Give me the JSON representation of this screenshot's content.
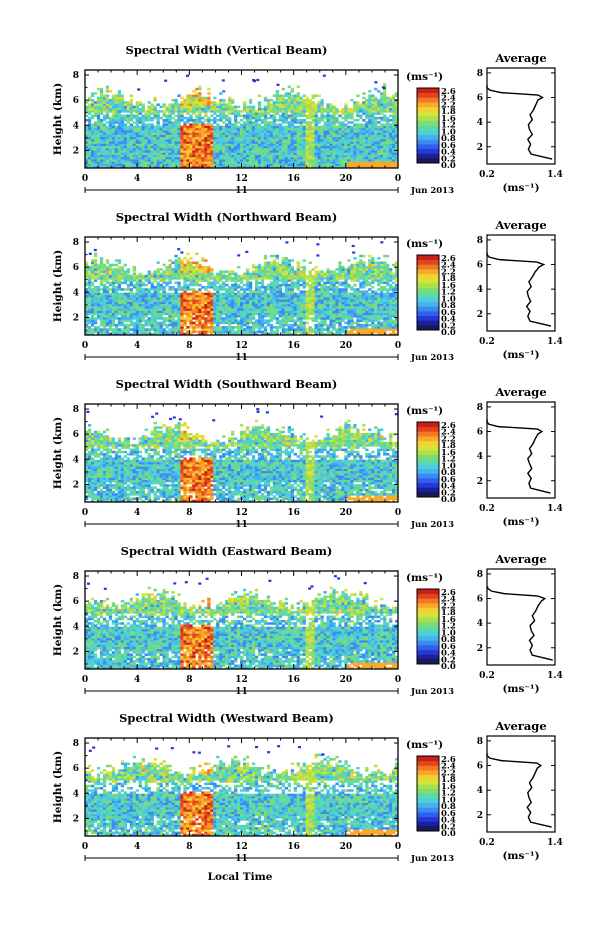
{
  "figure": {
    "xlabel": "Local Time",
    "date_label": "Jun 2013",
    "day_label": "11",
    "unit_label": "(ms⁻¹)",
    "avg_title": "Average",
    "ylabel": "Height (km)"
  },
  "colors": {
    "colormap": [
      "#1c1f9e",
      "#2538d8",
      "#2f5fec",
      "#3b8cf2",
      "#45b2f0",
      "#4ccfd8",
      "#5bd9a8",
      "#7fdc73",
      "#a8e04e",
      "#d6e43a",
      "#f5d032",
      "#f7a92c",
      "#f27825",
      "#e3441d",
      "#c81f16"
    ],
    "lowest_bin": "#1a1a5a"
  },
  "chart_data": [
    {
      "type": "heatmap",
      "title": "Spectral Width (Vertical Beam)",
      "x_ticks": [
        "0",
        "4",
        "8",
        "12",
        "16",
        "20",
        "0"
      ],
      "xlim": [
        0,
        24
      ],
      "y_ticks": [
        "2",
        "4",
        "6",
        "8"
      ],
      "ylim": [
        0.6,
        8.4
      ],
      "colorbar_ticks": [
        "2.6",
        "2.4",
        "2.2",
        "1.8",
        "1.6",
        "1.2",
        "1.0",
        "0.8",
        "0.6",
        "0.4",
        "0.2",
        "0.0"
      ],
      "profile": {
        "xlim": [
          0.2,
          1.4
        ],
        "x_ticks": [
          "0.2",
          "1.4"
        ],
        "ylim": [
          0.6,
          8.4
        ],
        "y_ticks": [
          "2",
          "4",
          "6",
          "8"
        ],
        "height_km": [
          1.0,
          1.4,
          1.8,
          2.2,
          2.6,
          3.0,
          3.4,
          3.8,
          4.2,
          4.6,
          5.0,
          5.4,
          5.8,
          6.0,
          6.2,
          6.4,
          6.6,
          6.8,
          7.0
        ],
        "width_ms": [
          1.35,
          0.98,
          0.93,
          0.97,
          0.92,
          1.0,
          0.95,
          0.93,
          1.0,
          0.96,
          1.02,
          1.06,
          1.1,
          1.18,
          1.1,
          0.45,
          0.25,
          0.2,
          0.2
        ]
      }
    },
    {
      "type": "heatmap",
      "title": "Spectral Width (Northward Beam)",
      "x_ticks": [
        "0",
        "4",
        "8",
        "12",
        "16",
        "20",
        "0"
      ],
      "xlim": [
        0,
        24
      ],
      "y_ticks": [
        "2",
        "4",
        "6",
        "8"
      ],
      "ylim": [
        0.6,
        8.4
      ],
      "colorbar_ticks": [
        "2.6",
        "2.4",
        "2.2",
        "1.8",
        "1.6",
        "1.2",
        "1.0",
        "0.8",
        "0.6",
        "0.4",
        "0.2",
        "0.0"
      ],
      "profile": {
        "xlim": [
          0.2,
          1.4
        ],
        "x_ticks": [
          "0.2",
          "1.4"
        ],
        "ylim": [
          0.6,
          8.4
        ],
        "y_ticks": [
          "2",
          "4",
          "6",
          "8"
        ],
        "height_km": [
          1.0,
          1.4,
          1.8,
          2.2,
          2.6,
          3.0,
          3.4,
          3.8,
          4.2,
          4.6,
          5.0,
          5.4,
          5.8,
          6.0,
          6.2,
          6.4,
          6.6,
          6.8,
          7.0
        ],
        "width_ms": [
          1.33,
          0.96,
          0.92,
          0.96,
          0.9,
          0.97,
          0.93,
          0.91,
          0.98,
          0.94,
          1.0,
          1.05,
          1.12,
          1.2,
          1.08,
          0.42,
          0.24,
          0.2,
          0.2
        ]
      }
    },
    {
      "type": "heatmap",
      "title": "Spectral Width (Southward Beam)",
      "x_ticks": [
        "0",
        "4",
        "8",
        "12",
        "16",
        "20",
        "0"
      ],
      "xlim": [
        0,
        24
      ],
      "y_ticks": [
        "2",
        "4",
        "6",
        "8"
      ],
      "ylim": [
        0.6,
        8.4
      ],
      "colorbar_ticks": [
        "2.6",
        "2.4",
        "2.2",
        "1.8",
        "1.6",
        "1.2",
        "1.0",
        "0.8",
        "0.6",
        "0.4",
        "0.2",
        "0.0"
      ],
      "profile": {
        "xlim": [
          0.2,
          1.4
        ],
        "x_ticks": [
          "0.2",
          "1.4"
        ],
        "ylim": [
          0.6,
          8.4
        ],
        "y_ticks": [
          "2",
          "4",
          "6",
          "8"
        ],
        "height_km": [
          1.0,
          1.4,
          1.8,
          2.2,
          2.6,
          3.0,
          3.4,
          3.8,
          4.2,
          4.6,
          5.0,
          5.4,
          5.8,
          6.0,
          6.2,
          6.4,
          6.6,
          6.8,
          7.0
        ],
        "width_ms": [
          1.32,
          0.97,
          0.94,
          0.98,
          0.92,
          0.99,
          0.95,
          0.92,
          0.99,
          0.95,
          1.01,
          1.05,
          1.1,
          1.17,
          1.09,
          0.4,
          0.23,
          0.2,
          0.2
        ]
      }
    },
    {
      "type": "heatmap",
      "title": "Spectral Width (Eastward Beam)",
      "x_ticks": [
        "0",
        "4",
        "8",
        "12",
        "16",
        "20",
        "0"
      ],
      "xlim": [
        0,
        24
      ],
      "y_ticks": [
        "2",
        "4",
        "6",
        "8"
      ],
      "ylim": [
        0.6,
        8.4
      ],
      "colorbar_ticks": [
        "2.6",
        "2.4",
        "2.2",
        "1.8",
        "1.6",
        "1.2",
        "1.0",
        "0.8",
        "0.6",
        "0.4",
        "0.2",
        "0.0"
      ],
      "profile": {
        "xlim": [
          0.2,
          1.4
        ],
        "x_ticks": [
          "0.2",
          "1.4"
        ],
        "ylim": [
          0.6,
          8.4
        ],
        "y_ticks": [
          "2",
          "4",
          "6",
          "8"
        ],
        "height_km": [
          1.0,
          1.4,
          1.8,
          2.2,
          2.6,
          3.0,
          3.4,
          3.8,
          4.2,
          4.6,
          5.0,
          5.4,
          5.8,
          6.0,
          6.2,
          6.4,
          6.6,
          6.8,
          7.0
        ],
        "width_ms": [
          1.36,
          1.0,
          0.96,
          1.0,
          0.95,
          1.03,
          0.98,
          0.96,
          1.04,
          1.0,
          1.06,
          1.1,
          1.16,
          1.22,
          1.1,
          0.5,
          0.28,
          0.22,
          0.2
        ]
      }
    },
    {
      "type": "heatmap",
      "title": "Spectral Width (Westward Beam)",
      "x_ticks": [
        "0",
        "4",
        "8",
        "12",
        "16",
        "20",
        "0"
      ],
      "xlim": [
        0,
        24
      ],
      "y_ticks": [
        "2",
        "4",
        "6",
        "8"
      ],
      "ylim": [
        0.6,
        8.4
      ],
      "colorbar_ticks": [
        "2.6",
        "2.4",
        "2.2",
        "1.8",
        "1.6",
        "1.2",
        "1.0",
        "0.8",
        "0.6",
        "0.4",
        "0.2",
        "0.0"
      ],
      "profile": {
        "xlim": [
          0.2,
          1.4
        ],
        "x_ticks": [
          "0.2",
          "1.4"
        ],
        "ylim": [
          0.6,
          8.4
        ],
        "y_ticks": [
          "2",
          "4",
          "6",
          "8"
        ],
        "height_km": [
          1.0,
          1.4,
          1.8,
          2.2,
          2.6,
          3.0,
          3.4,
          3.8,
          4.2,
          4.6,
          5.0,
          5.4,
          5.8,
          6.0,
          6.2,
          6.4,
          6.6,
          6.8,
          7.0
        ],
        "width_ms": [
          1.34,
          0.97,
          0.93,
          0.97,
          0.91,
          0.98,
          0.94,
          0.92,
          0.99,
          0.95,
          1.01,
          1.05,
          1.09,
          1.15,
          1.08,
          0.45,
          0.25,
          0.2,
          0.2
        ]
      }
    }
  ]
}
